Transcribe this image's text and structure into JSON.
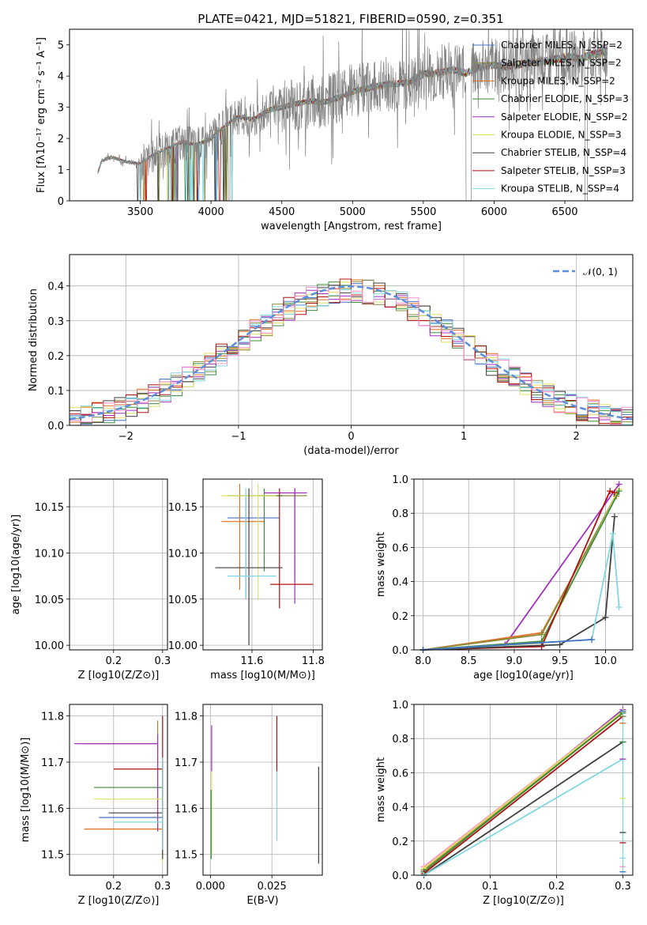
{
  "title": "PLATE=0421, MJD=51821, FIBERID=0590, z=0.351",
  "colors": [
    "#4472c4",
    "#8b8b3c",
    "#e07020",
    "#3c8c3c",
    "#a030c0",
    "#e0e060",
    "#404040",
    "#b01010",
    "#80d8e0",
    "#ff8fd0"
  ],
  "chart_data": [
    {
      "panel": "spectrum",
      "type": "line",
      "xlabel": "wavelength [Angstrom, rest frame]",
      "ylabel": "Flux [fλ10⁻¹⁷ erg cm⁻² s⁻¹ A⁻¹]",
      "xlim": [
        3000,
        6980
      ],
      "ylim": [
        0,
        5.5
      ],
      "xticks": [
        "3500",
        "4000",
        "4500",
        "5000",
        "5500",
        "6000",
        "6500"
      ],
      "yticks": [
        "0",
        "1",
        "2",
        "3",
        "4",
        "5"
      ],
      "legend": [
        "Chabrier MILES, N_SSP=2",
        "Salpeter MILES, N_SSP=2",
        "Kroupa MILES, N_SSP=2",
        "Chabrier ELODIE, N_SSP=3",
        "Salpeter ELODIE, N_SSP=2",
        "Kroupa ELODIE, N_SSP=3",
        "Chabrier STELIB, N_SSP=4",
        "Salpeter STELIB, N_SSP=3",
        "Kroupa STELIB, N_SSP=4"
      ],
      "legend_loc": "upper right",
      "model_x": [
        3200,
        3230,
        3300,
        3400,
        3500,
        3600,
        3700,
        3800,
        3900,
        4000,
        4100,
        4200,
        4300,
        4400,
        4500,
        4600,
        4700,
        4800,
        4900,
        5000,
        5100,
        5200,
        5300,
        5400,
        5500,
        5600,
        5700,
        5800,
        5900,
        6000,
        6100,
        6200,
        6300,
        6400,
        6500,
        6600,
        6700,
        6800
      ],
      "model_y": [
        0.9,
        1.3,
        1.4,
        1.25,
        1.2,
        1.5,
        1.7,
        1.9,
        1.8,
        2.0,
        2.4,
        2.7,
        2.6,
        2.9,
        3.0,
        3.1,
        3.2,
        3.15,
        3.3,
        3.5,
        3.6,
        3.7,
        3.75,
        3.8,
        4.05,
        4.1,
        4.2,
        4.1,
        4.3,
        4.35,
        4.3,
        4.4,
        4.45,
        4.5,
        4.6,
        4.55,
        4.7,
        4.8
      ]
    },
    {
      "panel": "residuals",
      "type": "step",
      "xlabel": "(data-model)/error",
      "ylabel": "Normed distribution",
      "xlim": [
        -2.5,
        2.5
      ],
      "ylim": [
        0,
        0.49
      ],
      "xticks": [
        "−2",
        "−1",
        "0",
        "1",
        "2"
      ],
      "yticks": [
        "0.0",
        "0.1",
        "0.2",
        "0.3",
        "0.4"
      ],
      "legend": [
        "𝒩(0, 1)"
      ],
      "legend_loc": "upper right",
      "grid": true
    },
    {
      "panel": "age-vs-Z",
      "type": "errorbar",
      "xlabel": "Z [log10(Z/Z⊙)]",
      "ylabel": "age [log10(age/yr)]",
      "xlim": [
        0.11,
        0.31
      ],
      "ylim": [
        9.995,
        10.18
      ],
      "xticks": [
        "0.2",
        "0.3"
      ],
      "yticks": [
        "10.00",
        "10.05",
        "10.10",
        "10.15"
      ],
      "grid": true,
      "points": [
        {
          "model": "Chabrier MILES",
          "Z": 0.3,
          "Zerr": [
            0.14,
            0.0
          ],
          "age": 10.138,
          "age_lo": 10.03,
          "age_hi": 10.175
        },
        {
          "model": "Salpeter MILES",
          "Z": 0.3,
          "Zerr": [
            0.13,
            0.0
          ],
          "age": 10.16,
          "age_lo": 10.05,
          "age_hi": 10.172
        },
        {
          "model": "Kroupa MILES",
          "Z": 0.3,
          "Zerr": [
            0.16,
            0.0
          ],
          "age": 10.134,
          "age_lo": 10.04,
          "age_hi": 10.17
        },
        {
          "model": "Chabrier ELODIE",
          "Z": 0.3,
          "Zerr": [
            0.1,
            0.0
          ],
          "age": 10.162,
          "age_lo": 10.06,
          "age_hi": 10.172
        },
        {
          "model": "Salpeter ELODIE",
          "Z": 0.3,
          "Zerr": [
            0.19,
            0.0
          ],
          "age": 10.165,
          "age_lo": 10.05,
          "age_hi": 10.175
        },
        {
          "model": "Kroupa ELODIE",
          "Z": 0.3,
          "Zerr": [
            0.11,
            0.0
          ],
          "age": 10.162,
          "age_lo": 10.04,
          "age_hi": 10.168
        },
        {
          "model": "Chabrier STELIB",
          "Z": 0.3,
          "Zerr": [
            0.1,
            0.0
          ],
          "age": 10.084,
          "age_lo": 10.0,
          "age_hi": 10.16
        },
        {
          "model": "Salpeter STELIB",
          "Z": 0.3,
          "Zerr": [
            0.08,
            0.0
          ],
          "age": 10.066,
          "age_lo": 10.04,
          "age_hi": 10.172
        },
        {
          "model": "Kroupa STELIB",
          "Z": 0.3,
          "Zerr": [
            0.08,
            0.0
          ],
          "age": 10.075,
          "age_lo": 10.04,
          "age_hi": 10.168
        }
      ]
    },
    {
      "panel": "age-vs-mass",
      "type": "errorbar",
      "xlabel": "mass [log10(M/M⊙)]",
      "ylabel": "",
      "xlim": [
        11.44,
        11.83
      ],
      "ylim": [
        9.995,
        10.18
      ],
      "xticks": [
        "11.6",
        "11.8"
      ],
      "yticks": [
        "10.00",
        "10.05",
        "10.10",
        "10.15"
      ],
      "grid": true,
      "points": [
        {
          "model": "Chabrier MILES",
          "mass": 11.58,
          "mass_lo": 11.52,
          "mass_hi": 11.69,
          "age": 10.138,
          "age_lo": 10.05,
          "age_hi": 10.16
        },
        {
          "model": "Salpeter MILES",
          "mass": 11.74,
          "mass_lo": 11.62,
          "mass_hi": 11.78,
          "age": 10.162,
          "age_lo": 10.07,
          "age_hi": 10.17
        },
        {
          "model": "Kroupa MILES",
          "mass": 11.56,
          "mass_lo": 11.5,
          "mass_hi": 11.64,
          "age": 10.134,
          "age_lo": 10.06,
          "age_hi": 10.175
        },
        {
          "model": "Chabrier ELODIE",
          "mass": 11.64,
          "mass_lo": 11.52,
          "mass_hi": 11.7,
          "age": 10.162,
          "age_lo": 10.08,
          "age_hi": 10.17
        },
        {
          "model": "Salpeter ELODIE",
          "mass": 11.74,
          "mass_lo": 11.64,
          "mass_hi": 11.78,
          "age": 10.165,
          "age_lo": 10.045,
          "age_hi": 10.17
        },
        {
          "model": "Kroupa ELODIE",
          "mass": 11.62,
          "mass_lo": 11.5,
          "mass_hi": 11.68,
          "age": 10.162,
          "age_lo": 10.05,
          "age_hi": 10.175
        },
        {
          "model": "Chabrier STELIB",
          "mass": 11.59,
          "mass_lo": 11.48,
          "mass_hi": 11.7,
          "age": 10.084,
          "age_lo": 10.0,
          "age_hi": 10.17
        },
        {
          "model": "Salpeter STELIB",
          "mass": 11.69,
          "mass_lo": 11.66,
          "mass_hi": 11.8,
          "age": 10.066,
          "age_lo": 10.04,
          "age_hi": 10.17
        },
        {
          "model": "Kroupa STELIB",
          "mass": 11.58,
          "mass_lo": 11.52,
          "mass_hi": 11.68,
          "age": 10.075,
          "age_lo": 10.05,
          "age_hi": 10.17
        }
      ]
    },
    {
      "panel": "mass-weight-vs-age",
      "type": "line",
      "xlabel": "age [log10(age/yr)]",
      "ylabel": "mass weight",
      "xlim": [
        7.9,
        10.3
      ],
      "ylim": [
        0,
        1
      ],
      "xticks": [
        "8.0",
        "8.5",
        "9.0",
        "9.5",
        "10.0"
      ],
      "yticks": [
        "0.0",
        "0.2",
        "0.4",
        "0.6",
        "0.8",
        "1.0"
      ],
      "grid": true,
      "series": [
        {
          "model": "Salpeter ELODIE",
          "color_index": 4,
          "x": [
            8.9,
            10.15
          ],
          "y": [
            0.03,
            0.97
          ]
        },
        {
          "model": "Kroupa MILES",
          "color_index": 2,
          "x": [
            8.0,
            9.3,
            10.12
          ],
          "y": [
            0.0,
            0.1,
            0.9
          ]
        },
        {
          "model": "Salpeter MILES",
          "color_index": 1,
          "x": [
            8.0,
            9.3,
            10.12
          ],
          "y": [
            0.0,
            0.09,
            0.91
          ]
        },
        {
          "model": "Kroupa ELODIE",
          "color_index": 5,
          "x": [
            8.0,
            9.3,
            10.15
          ],
          "y": [
            0.0,
            0.04,
            0.94
          ]
        },
        {
          "model": "Chabrier ELODIE",
          "color_index": 3,
          "x": [
            8.0,
            9.3,
            10.15
          ],
          "y": [
            0.0,
            0.05,
            0.93
          ]
        },
        {
          "model": "Salpeter STELIB",
          "color_index": 7,
          "x": [
            8.0,
            9.3,
            10.05,
            10.1
          ],
          "y": [
            0.0,
            0.02,
            0.93,
            0.92
          ]
        },
        {
          "model": "Chabrier STELIB",
          "color_index": 6,
          "x": [
            8.0,
            9.5,
            10.0,
            10.1
          ],
          "y": [
            0.0,
            0.03,
            0.19,
            0.78
          ]
        },
        {
          "model": "Kroupa STELIB",
          "color_index": 8,
          "x": [
            8.0,
            9.85,
            10.08,
            10.15
          ],
          "y": [
            0.0,
            0.06,
            0.68,
            0.25
          ]
        },
        {
          "model": "Chabrier MILES",
          "color_index": 0,
          "x": [
            8.0,
            9.85
          ],
          "y": [
            0.0,
            0.06
          ]
        }
      ]
    },
    {
      "panel": "mass-vs-Z",
      "type": "errorbar",
      "xlabel": "Z [log10(Z/Z⊙)]",
      "ylabel": "mass [log10(M/M⊙)]",
      "xlim": [
        0.11,
        0.31
      ],
      "ylim": [
        11.455,
        11.825
      ],
      "xticks": [
        "0.2",
        "0.3"
      ],
      "yticks": [
        "11.5",
        "11.6",
        "11.7",
        "11.8"
      ],
      "grid": true,
      "points": [
        {
          "model": "Chabrier MILES",
          "Z": 0.3,
          "Zerr": [
            0.13,
            0.0
          ],
          "mass": 11.58,
          "mass_lo": 11.5,
          "mass_hi": 11.7
        },
        {
          "model": "Salpeter MILES",
          "Z": 0.29,
          "Zerr": [
            0.15,
            0.0
          ],
          "mass": 11.74,
          "mass_lo": 11.55,
          "mass_hi": 11.79
        },
        {
          "model": "Kroupa MILES",
          "Z": 0.3,
          "Zerr": [
            0.16,
            0.0
          ],
          "mass": 11.555,
          "mass_lo": 11.5,
          "mass_hi": 11.7
        },
        {
          "model": "Chabrier ELODIE",
          "Z": 0.3,
          "Zerr": [
            0.14,
            0.0
          ],
          "mass": 11.645,
          "mass_lo": 11.52,
          "mass_hi": 11.7
        },
        {
          "model": "Salpeter ELODIE",
          "Z": 0.29,
          "Zerr": [
            0.17,
            0.0
          ],
          "mass": 11.74,
          "mass_lo": 11.55,
          "mass_hi": 11.76
        },
        {
          "model": "Kroupa ELODIE",
          "Z": 0.3,
          "Zerr": [
            0.14,
            0.0
          ],
          "mass": 11.62,
          "mass_lo": 11.48,
          "mass_hi": 11.68
        },
        {
          "model": "Chabrier STELIB",
          "Z": 0.3,
          "Zerr": [
            0.11,
            0.0
          ],
          "mass": 11.59,
          "mass_lo": 11.49,
          "mass_hi": 11.7
        },
        {
          "model": "Salpeter STELIB",
          "Z": 0.3,
          "Zerr": [
            0.1,
            0.0
          ],
          "mass": 11.685,
          "mass_lo": 11.52,
          "mass_hi": 11.8
        },
        {
          "model": "Kroupa STELIB",
          "Z": 0.3,
          "Zerr": [
            0.1,
            0.0
          ],
          "mass": 11.57,
          "mass_lo": 11.51,
          "mass_hi": 11.71
        }
      ]
    },
    {
      "panel": "mass-vs-EBV",
      "type": "errorbar",
      "xlabel": "E(B-V)",
      "ylabel": "",
      "xlim": [
        -0.003,
        0.0455
      ],
      "ylim": [
        11.455,
        11.825
      ],
      "xticks": [
        "0.000",
        "0.025"
      ],
      "yticks": [
        "11.5",
        "11.6",
        "11.7",
        "11.8"
      ],
      "grid": true,
      "points": [
        {
          "model": "Salpeter ELODIE",
          "ebv": 0.0005,
          "mass_lo": 11.68,
          "mass_hi": 11.78
        },
        {
          "model": "Kroupa ELODIE",
          "ebv": 0.0005,
          "mass_lo": 11.5,
          "mass_hi": 11.68
        },
        {
          "model": "Chabrier ELODIE",
          "ebv": 0.0003,
          "mass_lo": 11.49,
          "mass_hi": 11.64
        },
        {
          "model": "Salpeter STELIB",
          "ebv": 0.027,
          "mass_lo": 11.68,
          "mass_hi": 11.8
        },
        {
          "model": "Kroupa STELIB",
          "ebv": 0.027,
          "mass_lo": 11.53,
          "mass_hi": 11.68
        },
        {
          "model": "Chabrier STELIB",
          "ebv": 0.044,
          "mass_lo": 11.48,
          "mass_hi": 11.69
        }
      ]
    },
    {
      "panel": "mass-weight-vs-Z",
      "type": "line",
      "xlabel": "Z [log10(Z/Z⊙)]",
      "ylabel": "mass weight",
      "xlim": [
        -0.015,
        0.315
      ],
      "ylim": [
        0,
        1
      ],
      "xticks": [
        "0.0",
        "0.1",
        "0.2",
        "0.3"
      ],
      "yticks": [
        "0.0",
        "0.2",
        "0.4",
        "0.6",
        "0.8",
        "1.0"
      ],
      "grid": true,
      "series": [
        {
          "model": "Salpeter ELODIE",
          "color_index": 4,
          "x": [
            0.0,
            0.3
          ],
          "y": [
            0.03,
            0.97
          ]
        },
        {
          "model": "Pink",
          "color_index": 9,
          "x": [
            0.0,
            0.3
          ],
          "y": [
            0.05,
            0.96
          ]
        },
        {
          "model": "Kroupa MILES",
          "color_index": 2,
          "x": [
            0.0,
            0.3
          ],
          "y": [
            0.03,
            0.95
          ]
        },
        {
          "model": "Salpeter MILES",
          "color_index": 1,
          "x": [
            0.0,
            0.3
          ],
          "y": [
            0.03,
            0.96
          ]
        },
        {
          "model": "Kroupa ELODIE",
          "color_index": 5,
          "x": [
            0.0,
            0.3
          ],
          "y": [
            0.04,
            0.96
          ]
        },
        {
          "model": "Chabrier ELODIE",
          "color_index": 3,
          "x": [
            0.0,
            0.3
          ],
          "y": [
            0.02,
            0.95
          ]
        },
        {
          "model": "Salpeter STELIB",
          "color_index": 7,
          "x": [
            0.0,
            0.3
          ],
          "y": [
            0.01,
            0.93
          ]
        },
        {
          "model": "Chabrier STELIB",
          "color_index": 6,
          "x": [
            0.0,
            0.3
          ],
          "y": [
            0.0,
            0.78
          ]
        },
        {
          "model": "Kroupa STELIB",
          "color_index": 8,
          "x": [
            0.0,
            0.3
          ],
          "y": [
            0.0,
            0.68
          ]
        }
      ],
      "end_markers_y": [
        0.96,
        0.93,
        0.89,
        0.78,
        0.68,
        0.45,
        0.25,
        0.19,
        0.1,
        0.05,
        0.02
      ]
    }
  ]
}
